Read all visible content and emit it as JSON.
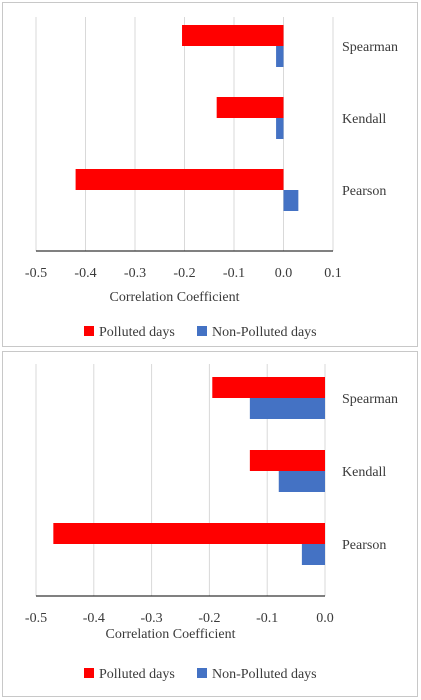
{
  "colors": {
    "polluted": "#ff0000",
    "non_polluted": "#4472c4",
    "grid": "#d9d9d9",
    "axis": "#000000"
  },
  "chart_data": [
    {
      "type": "bar",
      "orientation": "horizontal",
      "categories": [
        "Pearson",
        "Kendall",
        "Spearman"
      ],
      "series": [
        {
          "name": "Polluted days",
          "values": [
            -0.42,
            -0.135,
            -0.205
          ]
        },
        {
          "name": "Non-Polluted days",
          "values": [
            0.03,
            -0.015,
            -0.015
          ]
        }
      ],
      "xlabel": "Correlation  Coefficient",
      "xlim": [
        -0.5,
        0.1
      ],
      "xticks": [
        "-0.5",
        "-0.4",
        "-0.3",
        "-0.2",
        "-0.1",
        "0.0",
        "0.1"
      ],
      "grid": true,
      "legend_position": "bottom"
    },
    {
      "type": "bar",
      "orientation": "horizontal",
      "categories": [
        "Pearson",
        "Kendall",
        "Spearman"
      ],
      "series": [
        {
          "name": "Polluted days",
          "values": [
            -0.47,
            -0.13,
            -0.195
          ]
        },
        {
          "name": "Non-Polluted days",
          "values": [
            -0.04,
            -0.08,
            -0.13
          ]
        }
      ],
      "xlabel": "Correlation  Coefficient",
      "xlim": [
        -0.5,
        0.0
      ],
      "xticks": [
        "-0.5",
        "-0.4",
        "-0.3",
        "-0.2",
        "-0.1",
        "0.0"
      ],
      "grid": true,
      "legend_position": "bottom"
    }
  ]
}
